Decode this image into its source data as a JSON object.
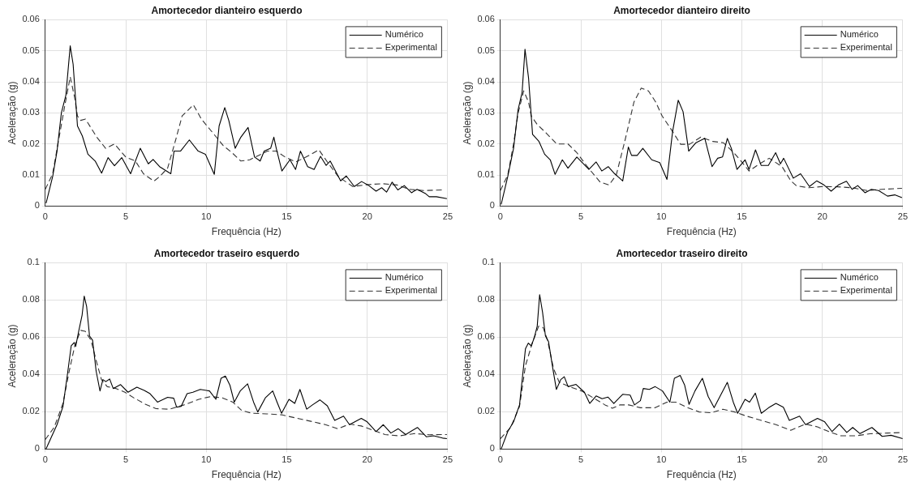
{
  "chart_data": [
    {
      "type": "line",
      "title": "Amortecedor dianteiro esquerdo",
      "xlabel": "Frequência (Hz)",
      "ylabel": "Aceleração (g)",
      "xlim": [
        0,
        25
      ],
      "xticks": [
        0,
        5,
        10,
        15,
        20,
        25
      ],
      "ylim": [
        0,
        0.06
      ],
      "yticks": [
        0,
        0.01,
        0.02,
        0.03,
        0.04,
        0.05,
        0.06
      ],
      "grid": true,
      "legend": "top right",
      "series": [
        {
          "name": "Numérico",
          "color": "#000000",
          "line_style": "solid",
          "x": [
            0.05,
            0.46,
            0.73,
            1.0,
            1.28,
            1.55,
            1.73,
            2.0,
            2.3,
            2.65,
            3.1,
            3.5,
            3.9,
            4.3,
            4.75,
            5.3,
            5.9,
            6.4,
            6.7,
            7.1,
            7.8,
            8.0,
            8.4,
            8.95,
            9.5,
            9.95,
            10.5,
            10.8,
            11.15,
            11.4,
            11.8,
            12.15,
            12.6,
            13.0,
            13.35,
            13.6,
            14.0,
            14.2,
            14.35,
            14.7,
            15.2,
            15.55,
            15.85,
            16.3,
            16.7,
            17.1,
            17.45,
            17.7,
            18.35,
            18.7,
            19.2,
            19.65,
            20.1,
            20.55,
            20.9,
            21.2,
            21.55,
            21.9,
            22.3,
            22.75,
            23.1,
            23.6,
            23.85,
            24.3,
            24.95
          ],
          "values": [
            0.0009,
            0.0095,
            0.0177,
            0.03,
            0.0357,
            0.0516,
            0.0457,
            0.0258,
            0.0226,
            0.0167,
            0.0145,
            0.0106,
            0.0156,
            0.013,
            0.0156,
            0.0104,
            0.0186,
            0.0136,
            0.015,
            0.0127,
            0.0104,
            0.0177,
            0.0177,
            0.0213,
            0.0177,
            0.0167,
            0.0102,
            0.0258,
            0.0317,
            0.0276,
            0.0186,
            0.0222,
            0.0253,
            0.0158,
            0.0145,
            0.0177,
            0.0186,
            0.0222,
            0.0186,
            0.0113,
            0.0149,
            0.0118,
            0.0177,
            0.0127,
            0.0118,
            0.016,
            0.0131,
            0.0145,
            0.0081,
            0.0097,
            0.0063,
            0.0079,
            0.0066,
            0.0048,
            0.0059,
            0.0045,
            0.0077,
            0.0052,
            0.0066,
            0.0043,
            0.0054,
            0.0041,
            0.003,
            0.003,
            0.0024
          ]
        },
        {
          "name": "Experimental",
          "color": "#333333",
          "line_style": "dashed",
          "x": [
            0,
            0.46,
            0.8,
            1.2,
            1.55,
            1.83,
            2.0,
            2.2,
            2.5,
            3.2,
            3.75,
            4.3,
            5.0,
            5.6,
            6.1,
            6.75,
            7.1,
            7.6,
            8.1,
            8.5,
            9.2,
            9.7,
            10.5,
            11.05,
            11.6,
            12.15,
            12.7,
            13.25,
            13.8,
            14.35,
            14.9,
            15.55,
            16.2,
            17.0,
            17.55,
            18.2,
            19.1,
            20.0,
            20.95,
            21.85,
            22.6,
            23.5,
            24.7
          ],
          "values": [
            0.0054,
            0.0104,
            0.0204,
            0.032,
            0.0416,
            0.0348,
            0.029,
            0.0276,
            0.028,
            0.0222,
            0.0186,
            0.02,
            0.0158,
            0.0145,
            0.0104,
            0.008,
            0.0095,
            0.0122,
            0.0213,
            0.029,
            0.0326,
            0.028,
            0.023,
            0.0195,
            0.0172,
            0.0145,
            0.0149,
            0.0163,
            0.0177,
            0.0177,
            0.0158,
            0.0142,
            0.0158,
            0.0181,
            0.014,
            0.0095,
            0.0063,
            0.0069,
            0.0072,
            0.0068,
            0.0054,
            0.005,
            0.0052
          ]
        }
      ]
    },
    {
      "type": "line",
      "title": "Amortecedor dianteiro direito",
      "xlabel": "Frequência (Hz)",
      "ylabel": "Aceleração (g)",
      "xlim": [
        0,
        25
      ],
      "xticks": [
        0,
        5,
        10,
        15,
        20,
        25
      ],
      "ylim": [
        0,
        0.06
      ],
      "yticks": [
        0,
        0.01,
        0.02,
        0.03,
        0.04,
        0.05,
        0.06
      ],
      "grid": true,
      "legend": "top right",
      "series": [
        {
          "name": "Numérico",
          "color": "#000000",
          "line_style": "solid",
          "x": [
            0.05,
            0.46,
            0.82,
            1.1,
            1.35,
            1.53,
            1.75,
            2.0,
            2.4,
            2.75,
            3.1,
            3.4,
            3.85,
            4.2,
            4.75,
            5.5,
            5.95,
            6.3,
            6.7,
            7.1,
            7.6,
            7.95,
            8.15,
            8.5,
            8.85,
            9.4,
            9.9,
            10.35,
            10.7,
            11.05,
            11.35,
            11.7,
            12.15,
            12.7,
            13.15,
            13.5,
            13.8,
            14.1,
            14.35,
            14.7,
            15.2,
            15.45,
            15.85,
            16.2,
            16.65,
            17.1,
            17.4,
            17.6,
            18.2,
            18.65,
            19.2,
            19.65,
            20.1,
            20.55,
            21.0,
            21.5,
            21.85,
            22.2,
            22.65,
            23.05,
            23.5,
            24.05,
            24.5,
            24.95
          ],
          "values": [
            0.0005,
            0.0095,
            0.0186,
            0.031,
            0.0366,
            0.0505,
            0.0413,
            0.0231,
            0.0208,
            0.0167,
            0.0149,
            0.0102,
            0.0149,
            0.0122,
            0.0158,
            0.0118,
            0.0142,
            0.0113,
            0.0127,
            0.0104,
            0.0081,
            0.019,
            0.0163,
            0.0163,
            0.0186,
            0.0149,
            0.014,
            0.0086,
            0.024,
            0.0341,
            0.0304,
            0.0177,
            0.0204,
            0.0218,
            0.0127,
            0.0154,
            0.0158,
            0.0218,
            0.0186,
            0.0118,
            0.0149,
            0.0118,
            0.0181,
            0.0131,
            0.0131,
            0.0172,
            0.0136,
            0.0154,
            0.009,
            0.0104,
            0.0063,
            0.0081,
            0.0068,
            0.0048,
            0.0068,
            0.008,
            0.0054,
            0.0066,
            0.0043,
            0.0054,
            0.005,
            0.0032,
            0.0036,
            0.0027
          ]
        },
        {
          "name": "Experimental",
          "color": "#333333",
          "line_style": "dashed",
          "x": [
            0,
            0.46,
            0.82,
            1.1,
            1.45,
            1.75,
            1.92,
            2.3,
            2.85,
            3.5,
            4.2,
            4.75,
            5.4,
            6.2,
            6.75,
            7.2,
            7.75,
            8.3,
            8.75,
            9.2,
            9.65,
            10.05,
            10.65,
            11.2,
            11.75,
            12.45,
            13.2,
            13.85,
            14.5,
            14.95,
            15.45,
            16.1,
            16.7,
            17.5,
            18.05,
            18.4,
            19.15,
            20.05,
            20.95,
            21.85,
            22.8,
            23.7,
            24.95
          ],
          "values": [
            0.005,
            0.01,
            0.02,
            0.0299,
            0.0371,
            0.0335,
            0.029,
            0.0262,
            0.0235,
            0.02,
            0.02,
            0.0172,
            0.0127,
            0.0077,
            0.0068,
            0.01,
            0.0213,
            0.0335,
            0.038,
            0.0371,
            0.0335,
            0.029,
            0.0244,
            0.0199,
            0.0199,
            0.0222,
            0.0208,
            0.0204,
            0.0172,
            0.0145,
            0.0113,
            0.0136,
            0.0154,
            0.0127,
            0.0081,
            0.0065,
            0.0059,
            0.0063,
            0.0062,
            0.0059,
            0.005,
            0.0054,
            0.0057
          ]
        }
      ]
    },
    {
      "type": "line",
      "title": "Amortecedor traseiro esquerdo",
      "xlabel": "Frequência (Hz)",
      "ylabel": "Aceleração (g)",
      "xlim": [
        0,
        25
      ],
      "xticks": [
        0,
        5,
        10,
        15,
        20,
        25
      ],
      "ylim": [
        0,
        0.1
      ],
      "yticks": [
        0,
        0.02,
        0.04,
        0.06,
        0.08,
        0.1
      ],
      "grid": true,
      "legend": "top right",
      "series": [
        {
          "name": "Numérico",
          "color": "#000000",
          "line_style": "solid",
          "x": [
            0.04,
            0.37,
            0.73,
            1.1,
            1.38,
            1.61,
            1.8,
            1.89,
            2.07,
            2.29,
            2.42,
            2.57,
            2.75,
            2.94,
            3.16,
            3.4,
            3.58,
            3.76,
            4.0,
            4.22,
            4.68,
            5.14,
            5.69,
            6.15,
            6.51,
            6.97,
            7.6,
            7.98,
            8.16,
            8.44,
            8.81,
            9.17,
            9.63,
            10.2,
            10.6,
            10.92,
            11.19,
            11.47,
            11.74,
            12.11,
            12.57,
            12.94,
            13.2,
            13.67,
            14.13,
            14.4,
            14.68,
            15.14,
            15.5,
            15.82,
            16.24,
            16.6,
            17.06,
            17.52,
            17.98,
            18.53,
            18.9,
            19.63,
            20.0,
            20.55,
            21.0,
            21.47,
            21.93,
            22.39,
            23.12,
            23.67,
            24.13,
            24.68,
            24.95
          ],
          "values": [
            0,
            0.0063,
            0.0131,
            0.0229,
            0.0403,
            0.0554,
            0.0572,
            0.0551,
            0.0629,
            0.072,
            0.0821,
            0.0765,
            0.0607,
            0.0584,
            0.0418,
            0.0312,
            0.0373,
            0.0362,
            0.0376,
            0.0325,
            0.0346,
            0.0305,
            0.0332,
            0.0315,
            0.0297,
            0.0252,
            0.0278,
            0.0273,
            0.0225,
            0.0229,
            0.0297,
            0.0305,
            0.032,
            0.0312,
            0.0267,
            0.038,
            0.0392,
            0.0343,
            0.0252,
            0.0312,
            0.035,
            0.0252,
            0.0199,
            0.0275,
            0.0312,
            0.0252,
            0.0192,
            0.0267,
            0.0245,
            0.032,
            0.0214,
            0.0237,
            0.0264,
            0.0232,
            0.0154,
            0.0177,
            0.0131,
            0.0165,
            0.0146,
            0.0094,
            0.0131,
            0.0086,
            0.0109,
            0.0078,
            0.0116,
            0.0066,
            0.0071,
            0.0059,
            0.0056
          ]
        },
        {
          "name": "Experimental",
          "color": "#333333",
          "line_style": "dashed",
          "x": [
            0,
            0.55,
            1.1,
            1.47,
            1.83,
            2.2,
            2.48,
            2.84,
            3.2,
            3.49,
            3.85,
            4.4,
            4.95,
            5.5,
            6.24,
            6.88,
            7.7,
            8.62,
            9.54,
            10.28,
            11.0,
            11.65,
            12.2,
            12.84,
            13.76,
            14.68,
            15.6,
            16.5,
            17.4,
            18.17,
            18.9,
            19.63,
            20.37,
            21.1,
            22.0,
            22.94,
            23.85,
            24.95
          ],
          "values": [
            0.0051,
            0.0116,
            0.0245,
            0.0411,
            0.0554,
            0.0637,
            0.0632,
            0.0584,
            0.0463,
            0.0373,
            0.0335,
            0.0325,
            0.0305,
            0.0275,
            0.024,
            0.0217,
            0.0214,
            0.0237,
            0.0267,
            0.0282,
            0.0275,
            0.0252,
            0.0207,
            0.0192,
            0.0189,
            0.0184,
            0.0166,
            0.0149,
            0.0131,
            0.0109,
            0.0134,
            0.0124,
            0.0101,
            0.0078,
            0.0071,
            0.0083,
            0.0077,
            0.0078
          ]
        }
      ]
    },
    {
      "type": "line",
      "title": "Amortecedor traseiro direito",
      "xlabel": "Frequência (Hz)",
      "ylabel": "Aceleração (g)",
      "xlim": [
        0,
        25
      ],
      "xticks": [
        0,
        5,
        10,
        15,
        20,
        25
      ],
      "ylim": [
        0,
        0.1
      ],
      "yticks": [
        0,
        0.02,
        0.04,
        0.06,
        0.08,
        0.1
      ],
      "grid": true,
      "legend": "top right",
      "series": [
        {
          "name": "Numérico",
          "color": "#000000",
          "line_style": "solid",
          "x": [
            0.05,
            0.46,
            0.82,
            1.19,
            1.56,
            1.74,
            1.92,
            2.11,
            2.29,
            2.44,
            2.62,
            2.8,
            2.99,
            3.3,
            3.48,
            3.75,
            3.97,
            4.21,
            4.7,
            5.22,
            5.55,
            5.95,
            6.32,
            6.68,
            7.05,
            7.6,
            8.06,
            8.33,
            8.7,
            8.88,
            9.25,
            9.62,
            10.07,
            10.53,
            10.81,
            11.17,
            11.45,
            11.72,
            12.09,
            12.55,
            12.91,
            13.28,
            13.64,
            14.1,
            14.47,
            14.74,
            15.2,
            15.48,
            15.84,
            16.21,
            16.67,
            17.12,
            17.58,
            17.95,
            18.59,
            18.96,
            19.7,
            20.15,
            20.6,
            21.06,
            21.52,
            21.89,
            22.34,
            23.08,
            23.72,
            24.27,
            24.99
          ],
          "values": [
            0,
            0.0094,
            0.0146,
            0.0237,
            0.0539,
            0.0569,
            0.0554,
            0.0599,
            0.066,
            0.0829,
            0.0735,
            0.0607,
            0.0577,
            0.0411,
            0.032,
            0.0373,
            0.0388,
            0.0335,
            0.0347,
            0.0305,
            0.0245,
            0.0285,
            0.027,
            0.0279,
            0.0245,
            0.0294,
            0.029,
            0.0237,
            0.026,
            0.0325,
            0.032,
            0.0335,
            0.0312,
            0.0252,
            0.038,
            0.0395,
            0.0343,
            0.024,
            0.0312,
            0.038,
            0.0282,
            0.0222,
            0.0282,
            0.0358,
            0.0252,
            0.0192,
            0.0267,
            0.0252,
            0.03,
            0.0192,
            0.0222,
            0.0245,
            0.0225,
            0.0154,
            0.0177,
            0.0131,
            0.0165,
            0.0146,
            0.0094,
            0.0134,
            0.0089,
            0.0116,
            0.0083,
            0.0116,
            0.0068,
            0.0074,
            0.0056
          ]
        },
        {
          "name": "Experimental",
          "color": "#333333",
          "line_style": "dashed",
          "x": [
            0,
            0.64,
            1.19,
            1.56,
            2.01,
            2.38,
            2.66,
            2.93,
            3.3,
            3.66,
            4.3,
            5.04,
            5.77,
            6.5,
            6.96,
            7.42,
            7.97,
            8.7,
            9.62,
            10.35,
            10.9,
            11.63,
            12.36,
            13.1,
            13.83,
            14.56,
            15.29,
            16.21,
            17.12,
            18.04,
            18.96,
            19.7,
            20.4,
            21.15,
            22.07,
            22.97,
            24.05,
            24.99
          ],
          "values": [
            0.0056,
            0.0116,
            0.0229,
            0.0448,
            0.0577,
            0.066,
            0.0652,
            0.0584,
            0.0433,
            0.0358,
            0.0335,
            0.0312,
            0.0275,
            0.0237,
            0.0219,
            0.0237,
            0.0237,
            0.0222,
            0.0222,
            0.0252,
            0.0252,
            0.0222,
            0.0199,
            0.0195,
            0.0214,
            0.0199,
            0.0177,
            0.0154,
            0.0131,
            0.0101,
            0.0134,
            0.0119,
            0.0094,
            0.0071,
            0.0071,
            0.0082,
            0.0086,
            0.0089
          ]
        }
      ]
    }
  ]
}
